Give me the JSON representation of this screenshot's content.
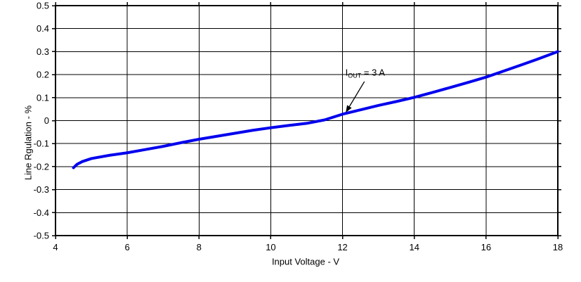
{
  "chart_data": {
    "type": "line",
    "title": "",
    "xlabel": "Input Voltage - V",
    "ylabel": "Line Rgulation - %",
    "xlim": [
      4,
      18
    ],
    "ylim": [
      -0.5,
      0.5
    ],
    "x_tick_values": [
      4,
      6,
      8,
      10,
      12,
      14,
      16,
      18
    ],
    "x_tick_labels": [
      "4",
      "6",
      "8",
      "10",
      "12",
      "14",
      "16",
      "18"
    ],
    "y_tick_values": [
      0.5,
      0.4,
      0.3,
      0.2,
      0.1,
      0,
      -0.1,
      -0.2,
      -0.3,
      -0.4,
      -0.5
    ],
    "y_tick_labels": [
      "0.5",
      "0.4",
      "0.3",
      "0.2",
      "0.1",
      "0",
      "-0.1",
      "-0.2",
      "-0.3",
      "-0.4",
      "-0.5"
    ],
    "grid": true,
    "legend_position": "none",
    "line_color": "#0000EE",
    "line_width": 4,
    "grid_color": "#000000",
    "border_color": "#000000",
    "text_color": "#000000",
    "series": [
      {
        "name": "IOUT = 3 A",
        "x": [
          4.5,
          4.6,
          4.75,
          5.0,
          5.5,
          6.0,
          6.5,
          7.0,
          7.5,
          8.0,
          8.5,
          9.0,
          9.5,
          10.0,
          10.5,
          11.0,
          11.5,
          12.0,
          12.5,
          13.0,
          13.5,
          14.0,
          14.5,
          15.0,
          15.5,
          16.0,
          16.5,
          17.0,
          17.5,
          18.0
        ],
        "y": [
          -0.205,
          -0.19,
          -0.178,
          -0.165,
          -0.151,
          -0.14,
          -0.126,
          -0.112,
          -0.096,
          -0.081,
          -0.068,
          -0.055,
          -0.042,
          -0.031,
          -0.021,
          -0.012,
          0.003,
          0.028,
          0.047,
          0.066,
          0.083,
          0.101,
          0.122,
          0.144,
          0.166,
          0.189,
          0.216,
          0.243,
          0.271,
          0.3
        ]
      }
    ],
    "annotation": {
      "text_base": "I",
      "text_sub": "OUT",
      "text_rest": " = 3 A",
      "text_x": 12.08,
      "text_y": 0.21,
      "arrow": {
        "x1": 12.61,
        "y1": 0.17,
        "x2": 12.09,
        "y2": 0.035
      }
    }
  }
}
